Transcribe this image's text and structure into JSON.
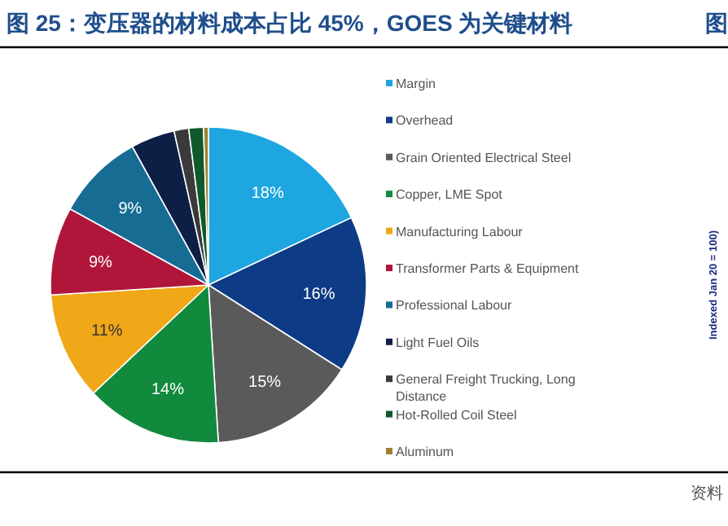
{
  "chart_data": {
    "type": "pie",
    "title": "图 25：变压器的材料成本占比 45%，GOES 为关键材料",
    "categories": [
      "Margin",
      "Overhead",
      "Grain Oriented Electrical Steel",
      "Copper, LME Spot",
      "Manufacturing Labour",
      "Transformer Parts & Equipment",
      "Professional Labour",
      "Light Fuel Oils",
      "General Freight Trucking, Long Distance",
      "Hot-Rolled Coil Steel",
      "Aluminum"
    ],
    "values": [
      18,
      16,
      15,
      14,
      11,
      9,
      9,
      4.5,
      1.5,
      1.5,
      0.5
    ],
    "value_labels": [
      "18%",
      "16%",
      "15%",
      "14%",
      "11%",
      "9%",
      "9%",
      null,
      null,
      null,
      null
    ],
    "colors": [
      "#1ea6e0",
      "#0d3b85",
      "#5a5a5a",
      "#118a3e",
      "#f0a818",
      "#b0163a",
      "#176c94",
      "#0d1f45",
      "#3a3a3a",
      "#0f5a2a",
      "#a08030"
    ],
    "legend": "right",
    "annotations": [
      "图",
      "资料",
      "Indexed Jan 20 = 100)"
    ]
  }
}
